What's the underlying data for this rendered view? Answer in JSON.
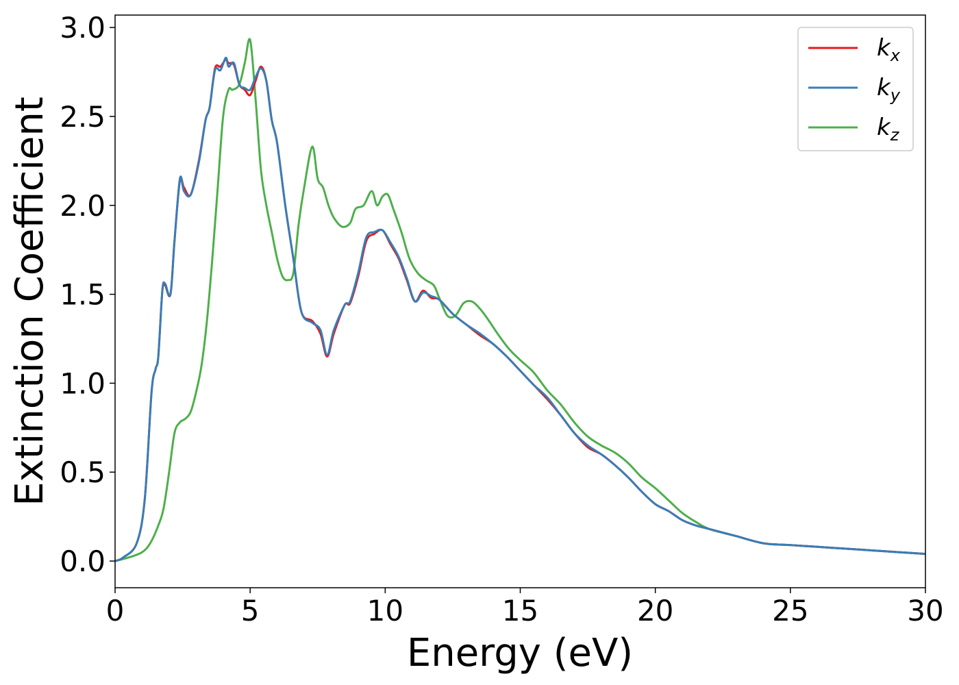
{
  "chart_data": {
    "type": "line",
    "title": "",
    "xlabel": "Energy (eV)",
    "ylabel": "Extinction Coefficient",
    "xlim": [
      0,
      30
    ],
    "ylim": [
      -0.15,
      3.07
    ],
    "xticks": [
      0,
      5,
      10,
      15,
      20,
      25,
      30
    ],
    "xtick_labels": [
      "0",
      "5",
      "10",
      "15",
      "20",
      "25",
      "30"
    ],
    "yticks": [
      0.0,
      0.5,
      1.0,
      1.5,
      2.0,
      2.5,
      3.0
    ],
    "ytick_labels": [
      "0.0",
      "0.5",
      "1.0",
      "1.5",
      "2.0",
      "2.5",
      "3.0"
    ],
    "grid": false,
    "legend_position": "top-right",
    "series": [
      {
        "name": "k",
        "subscript": "x",
        "color": "#e41a1c",
        "x": [
          0,
          0.3,
          0.8,
          1.1,
          1.35,
          1.5,
          1.6,
          1.75,
          1.85,
          2.05,
          2.2,
          2.4,
          2.55,
          2.8,
          3.1,
          3.35,
          3.5,
          3.7,
          3.9,
          4.1,
          4.2,
          4.4,
          4.6,
          4.8,
          5.0,
          5.2,
          5.4,
          5.6,
          5.8,
          6.0,
          6.3,
          6.6,
          6.9,
          7.3,
          7.6,
          7.85,
          8.1,
          8.5,
          8.7,
          9.0,
          9.3,
          9.6,
          9.9,
          10.2,
          10.5,
          10.8,
          11.1,
          11.4,
          11.7,
          12.0,
          12.5,
          13.0,
          13.5,
          14.0,
          14.5,
          15.0,
          15.5,
          16.0,
          16.5,
          17.0,
          17.5,
          18.0,
          18.5,
          19.0,
          19.5,
          20.0,
          20.5,
          21.0,
          21.5,
          22.0,
          23.0,
          24.0,
          25.0,
          26.0,
          27.0,
          28.0,
          29.0,
          30.0
        ],
        "values": [
          0.0,
          0.02,
          0.1,
          0.35,
          0.95,
          1.08,
          1.15,
          1.52,
          1.55,
          1.5,
          1.8,
          2.14,
          2.1,
          2.06,
          2.25,
          2.48,
          2.55,
          2.77,
          2.78,
          2.82,
          2.8,
          2.79,
          2.68,
          2.65,
          2.62,
          2.7,
          2.78,
          2.7,
          2.48,
          2.35,
          2.0,
          1.7,
          1.4,
          1.35,
          1.28,
          1.15,
          1.28,
          1.44,
          1.45,
          1.6,
          1.8,
          1.84,
          1.86,
          1.78,
          1.7,
          1.58,
          1.46,
          1.52,
          1.48,
          1.47,
          1.39,
          1.33,
          1.27,
          1.22,
          1.15,
          1.07,
          0.99,
          0.91,
          0.82,
          0.72,
          0.64,
          0.6,
          0.54,
          0.47,
          0.39,
          0.32,
          0.28,
          0.23,
          0.2,
          0.18,
          0.14,
          0.1,
          0.09,
          0.08,
          0.07,
          0.06,
          0.05,
          0.04
        ]
      },
      {
        "name": "k",
        "subscript": "y",
        "color": "#377eb8",
        "x": [
          0,
          0.3,
          0.8,
          1.1,
          1.35,
          1.5,
          1.6,
          1.75,
          1.85,
          2.05,
          2.2,
          2.4,
          2.55,
          2.8,
          3.1,
          3.35,
          3.5,
          3.7,
          3.9,
          4.1,
          4.2,
          4.4,
          4.6,
          4.8,
          5.0,
          5.2,
          5.4,
          5.6,
          5.8,
          6.0,
          6.3,
          6.6,
          6.9,
          7.3,
          7.6,
          7.85,
          8.1,
          8.5,
          8.7,
          9.0,
          9.3,
          9.6,
          9.9,
          10.2,
          10.5,
          10.8,
          11.1,
          11.4,
          11.7,
          12.0,
          12.5,
          13.0,
          13.5,
          14.0,
          14.5,
          15.0,
          15.5,
          16.0,
          16.5,
          17.0,
          17.5,
          18.0,
          18.5,
          19.0,
          19.5,
          20.0,
          20.5,
          21.0,
          21.5,
          22.0,
          23.0,
          24.0,
          25.0,
          26.0,
          27.0,
          28.0,
          29.0,
          30.0
        ],
        "values": [
          0.0,
          0.02,
          0.1,
          0.35,
          0.95,
          1.08,
          1.15,
          1.52,
          1.56,
          1.5,
          1.8,
          2.15,
          2.08,
          2.06,
          2.24,
          2.48,
          2.55,
          2.76,
          2.76,
          2.83,
          2.78,
          2.8,
          2.68,
          2.66,
          2.65,
          2.72,
          2.77,
          2.7,
          2.48,
          2.35,
          2.0,
          1.7,
          1.4,
          1.34,
          1.3,
          1.16,
          1.3,
          1.44,
          1.46,
          1.62,
          1.82,
          1.85,
          1.86,
          1.79,
          1.71,
          1.59,
          1.46,
          1.51,
          1.49,
          1.47,
          1.39,
          1.33,
          1.28,
          1.22,
          1.15,
          1.07,
          0.99,
          0.92,
          0.82,
          0.72,
          0.65,
          0.6,
          0.54,
          0.47,
          0.39,
          0.32,
          0.28,
          0.23,
          0.2,
          0.18,
          0.14,
          0.1,
          0.09,
          0.08,
          0.07,
          0.06,
          0.05,
          0.04
        ]
      },
      {
        "name": "k",
        "subscript": "z",
        "color": "#4daf4a",
        "x": [
          0,
          0.5,
          1.0,
          1.3,
          1.6,
          1.8,
          2.0,
          2.2,
          2.4,
          2.6,
          2.8,
          3.0,
          3.2,
          3.4,
          3.6,
          3.8,
          4.0,
          4.2,
          4.35,
          4.6,
          4.8,
          5.0,
          5.2,
          5.4,
          5.6,
          5.8,
          6.0,
          6.2,
          6.4,
          6.6,
          6.8,
          7.0,
          7.3,
          7.5,
          7.7,
          7.9,
          8.1,
          8.4,
          8.7,
          8.9,
          9.2,
          9.5,
          9.7,
          9.9,
          10.1,
          10.3,
          10.6,
          10.9,
          11.2,
          11.5,
          11.8,
          12.0,
          12.3,
          12.6,
          12.9,
          13.2,
          13.5,
          13.8,
          14.2,
          14.6,
          15.0,
          15.5,
          16.0,
          16.5,
          17.0,
          17.5,
          18.0,
          18.5,
          19.0,
          19.5,
          20.0,
          20.5,
          21.0,
          21.5,
          22.0,
          23.0,
          24.0,
          25.0,
          26.0,
          27.0,
          28.0,
          29.0,
          30.0
        ],
        "values": [
          0.0,
          0.02,
          0.05,
          0.1,
          0.2,
          0.3,
          0.5,
          0.72,
          0.78,
          0.8,
          0.84,
          0.95,
          1.1,
          1.35,
          1.7,
          2.1,
          2.5,
          2.65,
          2.65,
          2.68,
          2.8,
          2.93,
          2.6,
          2.2,
          2.0,
          1.85,
          1.7,
          1.6,
          1.58,
          1.62,
          1.9,
          2.1,
          2.33,
          2.15,
          2.1,
          2.0,
          1.93,
          1.88,
          1.9,
          1.98,
          2.0,
          2.08,
          2.0,
          2.05,
          2.06,
          1.98,
          1.85,
          1.7,
          1.62,
          1.58,
          1.55,
          1.48,
          1.38,
          1.38,
          1.45,
          1.46,
          1.42,
          1.36,
          1.27,
          1.19,
          1.13,
          1.06,
          0.96,
          0.88,
          0.78,
          0.7,
          0.65,
          0.61,
          0.55,
          0.47,
          0.41,
          0.34,
          0.27,
          0.22,
          0.18,
          0.14,
          0.1,
          0.09,
          0.08,
          0.07,
          0.06,
          0.05,
          0.04
        ]
      }
    ]
  }
}
